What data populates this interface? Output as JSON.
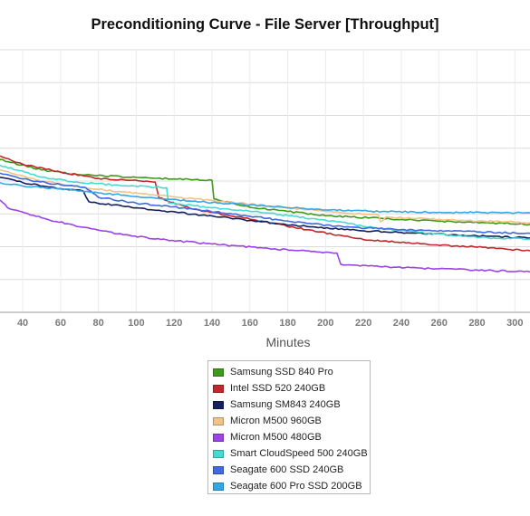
{
  "chart_data": {
    "type": "line",
    "title": "Preconditioning Curve - File Server [Throughput]",
    "xlabel": "Minutes",
    "ylabel": "",
    "xlim": [
      28,
      308
    ],
    "ylim": [
      0,
      1
    ],
    "x_ticks": [
      40,
      60,
      80,
      100,
      120,
      140,
      160,
      180,
      200,
      220,
      240,
      260,
      280,
      300
    ],
    "grid": true,
    "legend_position": "bottom-center",
    "series": [
      {
        "name": "Samsung SSD 840 Pro",
        "color": "#3e9a1c",
        "points": [
          [
            28,
            0.582
          ],
          [
            50,
            0.542
          ],
          [
            70,
            0.524
          ],
          [
            100,
            0.514
          ],
          [
            120,
            0.508
          ],
          [
            140,
            0.503
          ],
          [
            141,
            0.432
          ],
          [
            160,
            0.4
          ],
          [
            180,
            0.384
          ],
          [
            200,
            0.368
          ],
          [
            230,
            0.358
          ],
          [
            260,
            0.347
          ],
          [
            308,
            0.335
          ]
        ]
      },
      {
        "name": "Intel SSD 520 240GB",
        "color": "#c0282d",
        "points": [
          [
            28,
            0.596
          ],
          [
            40,
            0.564
          ],
          [
            60,
            0.534
          ],
          [
            80,
            0.51
          ],
          [
            110,
            0.496
          ],
          [
            112,
            0.436
          ],
          [
            130,
            0.393
          ],
          [
            160,
            0.355
          ],
          [
            190,
            0.315
          ],
          [
            210,
            0.29
          ],
          [
            220,
            0.277
          ],
          [
            250,
            0.261
          ],
          [
            280,
            0.248
          ],
          [
            308,
            0.235
          ]
        ]
      },
      {
        "name": "Samsung SM843 240GB",
        "color": "#14205f",
        "points": [
          [
            28,
            0.514
          ],
          [
            40,
            0.494
          ],
          [
            60,
            0.471
          ],
          [
            72,
            0.462
          ],
          [
            75,
            0.421
          ],
          [
            100,
            0.398
          ],
          [
            130,
            0.374
          ],
          [
            160,
            0.35
          ],
          [
            190,
            0.327
          ],
          [
            210,
            0.315
          ],
          [
            240,
            0.304
          ],
          [
            280,
            0.291
          ],
          [
            308,
            0.283
          ]
        ]
      },
      {
        "name": "Micron M500 960GB",
        "color": "#f2c288",
        "points": [
          [
            28,
            0.541
          ],
          [
            50,
            0.5
          ],
          [
            80,
            0.468
          ],
          [
            110,
            0.446
          ],
          [
            140,
            0.426
          ],
          [
            170,
            0.405
          ],
          [
            200,
            0.384
          ],
          [
            228,
            0.37
          ],
          [
            229,
            0.345
          ],
          [
            232,
            0.364
          ],
          [
            260,
            0.354
          ],
          [
            308,
            0.341
          ]
        ]
      },
      {
        "name": "Micron M500 480GB",
        "color": "#9b44e6",
        "points": [
          [
            28,
            0.428
          ],
          [
            32,
            0.398
          ],
          [
            50,
            0.36
          ],
          [
            70,
            0.326
          ],
          [
            90,
            0.299
          ],
          [
            110,
            0.279
          ],
          [
            140,
            0.26
          ],
          [
            170,
            0.243
          ],
          [
            200,
            0.229
          ],
          [
            206,
            0.226
          ],
          [
            208,
            0.183
          ],
          [
            230,
            0.173
          ],
          [
            260,
            0.166
          ],
          [
            308,
            0.154
          ]
        ]
      },
      {
        "name": "Smart CloudSpeed 500 240GB",
        "color": "#45dbd3",
        "points": [
          [
            28,
            0.56
          ],
          [
            50,
            0.515
          ],
          [
            70,
            0.494
          ],
          [
            90,
            0.485
          ],
          [
            116,
            0.475
          ],
          [
            117,
            0.417
          ],
          [
            140,
            0.398
          ],
          [
            170,
            0.378
          ],
          [
            200,
            0.351
          ],
          [
            230,
            0.318
          ],
          [
            260,
            0.298
          ],
          [
            280,
            0.285
          ],
          [
            308,
            0.279
          ]
        ]
      },
      {
        "name": "Seagate 600 SSD 240GB",
        "color": "#4169e1",
        "points": [
          [
            28,
            0.53
          ],
          [
            40,
            0.508
          ],
          [
            60,
            0.486
          ],
          [
            73,
            0.476
          ],
          [
            80,
            0.438
          ],
          [
            100,
            0.416
          ],
          [
            130,
            0.393
          ],
          [
            160,
            0.366
          ],
          [
            190,
            0.339
          ],
          [
            210,
            0.325
          ],
          [
            240,
            0.315
          ],
          [
            280,
            0.306
          ],
          [
            308,
            0.301
          ]
        ]
      },
      {
        "name": "Seagate 600 Pro SSD 200GB",
        "color": "#33a8e8",
        "points": [
          [
            28,
            0.494
          ],
          [
            40,
            0.481
          ],
          [
            60,
            0.47
          ],
          [
            80,
            0.455
          ],
          [
            110,
            0.435
          ],
          [
            140,
            0.418
          ],
          [
            170,
            0.404
          ],
          [
            200,
            0.39
          ],
          [
            230,
            0.384
          ],
          [
            260,
            0.381
          ],
          [
            308,
            0.379
          ]
        ]
      }
    ]
  }
}
